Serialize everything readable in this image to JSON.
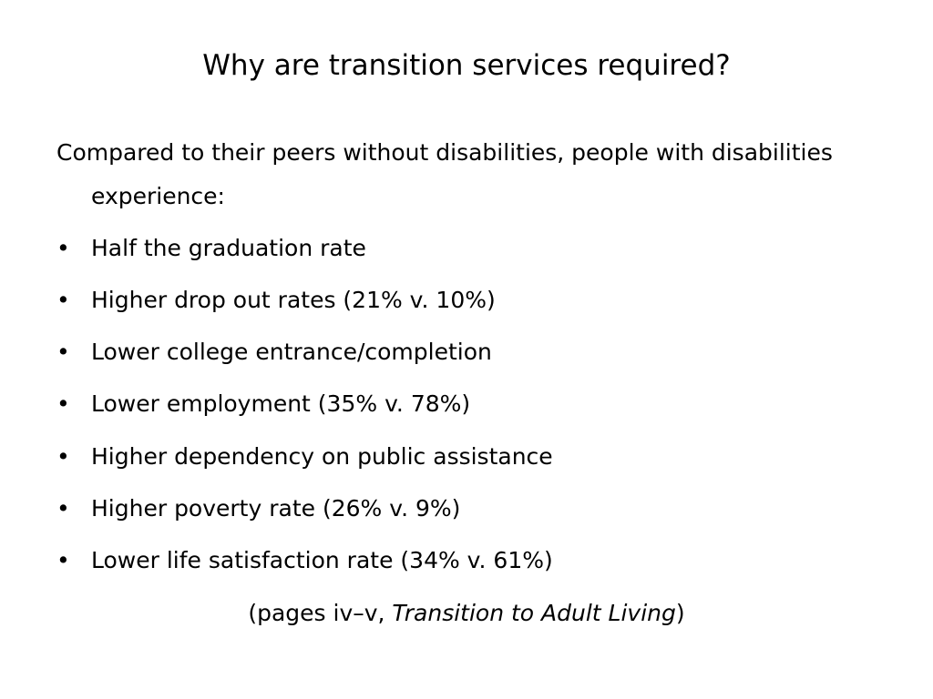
{
  "title": "Why are transition services required?",
  "intro": "Compared to their peers without disabilities, people with disabilities experience:",
  "bullets": [
    "Half the graduation rate",
    "Higher drop out rates (21% v. 10%)",
    "Lower college entrance/completion",
    "Lower employment (35% v. 78%)",
    "Higher dependency on public assistance",
    "Higher poverty rate (26% v. 9%)",
    "Lower life satisfaction rate (34% v. 61%)"
  ],
  "citation": {
    "prefix": "(pages iv–v, ",
    "work": "Transition to Adult Living",
    "suffix": ")"
  }
}
